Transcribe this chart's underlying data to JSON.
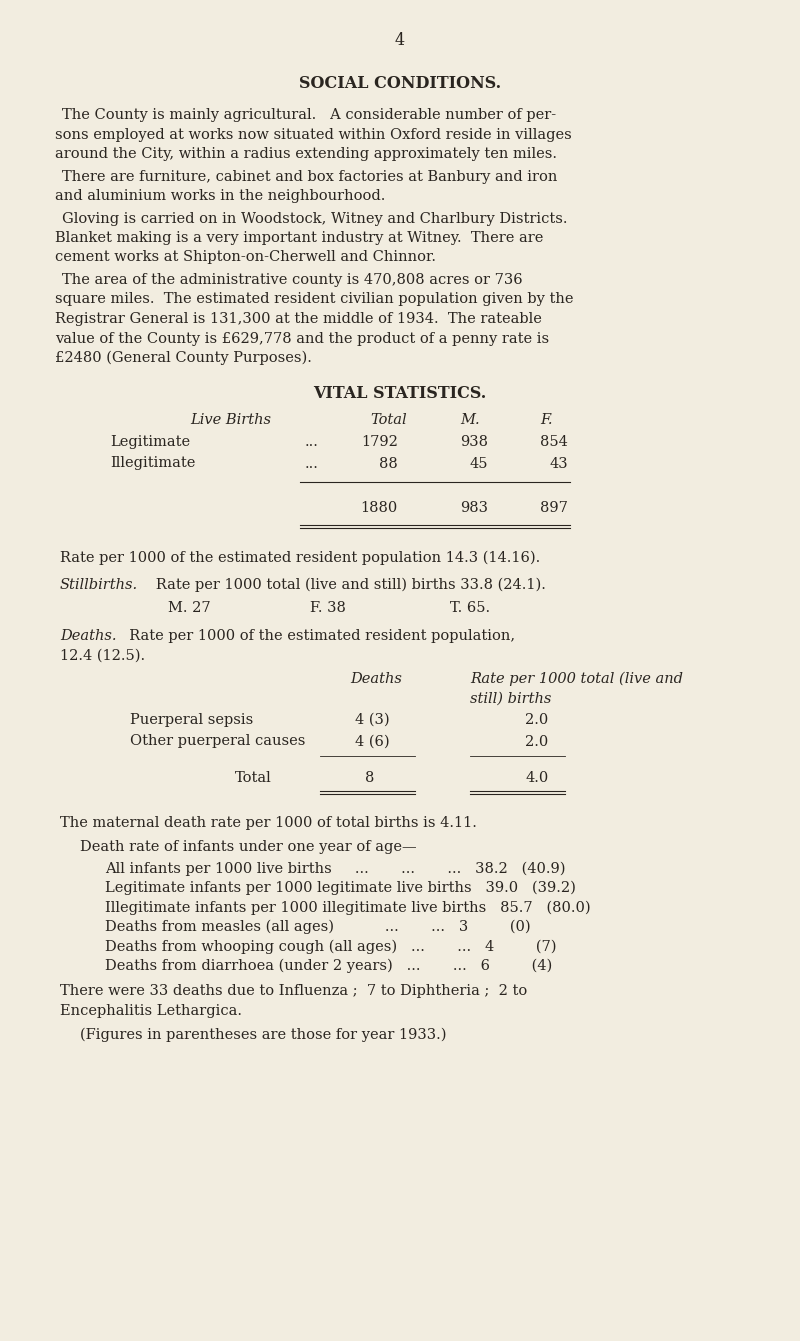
{
  "bg_color": "#f2ede0",
  "text_color": "#2a2520",
  "page_number": "4",
  "title_social": "SOCIAL CONDITIONS.",
  "para1_lines": [
    "The County is mainly agricultural.   A considerable number of per-",
    "sons employed at works now situated within Oxford reside in villages",
    "around the City, within a radius extending approximately ten miles."
  ],
  "para2_lines": [
    "There are furniture, cabinet and box factories at Banbury and iron",
    "and aluminium works in the neighbourhood."
  ],
  "para3_lines": [
    "Gloving is carried on in Woodstock, Witney and Charlbury Districts.",
    "Blanket making is a very important industry at Witney.  There are",
    "cement works at Shipton-on-Cherwell and Chinnor."
  ],
  "para4_lines": [
    "The area of the administrative county is 470,808 acres or 736",
    "square miles.  The estimated resident civilian population given by the",
    "Registrar General is 131,300 at the middle of 1934.  The rateable",
    "value of the County is £629,778 and the product of a penny rate is",
    "£2480 (General County Purposes)."
  ],
  "title_vital": "VITAL STATISTICS.",
  "rate_line": "Rate per 1000 of the estimated resident population 14.3 (14.16).",
  "maternal_line": "The maternal death rate per 1000 of total births is 4.11.",
  "infant_heading": "Death rate of infants under one year of age—",
  "final_line1": "There were 33 deaths due to Influenza ;  7 to Diphtheria ;  2 to",
  "final_line2": "Encephalitis Lethargica.",
  "final_line3": "(Figures in parentheses are those for year 1933.)"
}
